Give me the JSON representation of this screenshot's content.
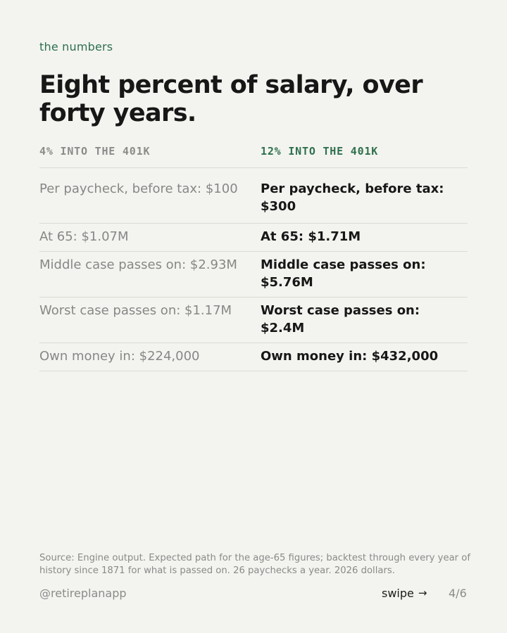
{
  "header": {
    "kicker": "the numbers",
    "title": "Eight percent of salary, over forty years."
  },
  "columns": {
    "left": "4% INTO THE 401K",
    "right": "12% INTO THE 401K"
  },
  "rows": [
    {
      "left": "Per paycheck, before tax: $100",
      "right": "Per paycheck, before tax: $300"
    },
    {
      "left": "At 65: $1.07M",
      "right": "At 65: $1.71M"
    },
    {
      "left": "Middle case passes on: $2.93M",
      "right": "Middle case passes on: $5.76M"
    },
    {
      "left": "Worst case passes on: $1.17M",
      "right": "Worst case passes on: $2.4M"
    },
    {
      "left": "Own money in: $224,000",
      "right": "Own money in: $432,000"
    }
  ],
  "source": "Source: Engine output. Expected path for the age-65 figures; backtest through every year of history since 1871 for what is passed on. 26 paychecks a year. 2026 dollars.",
  "footer": {
    "handle": "@retireplanapp",
    "swipe_label": "swipe",
    "swipe_icon": "arrow-right-icon",
    "page": "4/6"
  },
  "colors": {
    "background": "#f3f4ef",
    "accent": "#2f6f4e",
    "muted": "#878787",
    "text": "#171717",
    "divider": "#dadbd4"
  }
}
